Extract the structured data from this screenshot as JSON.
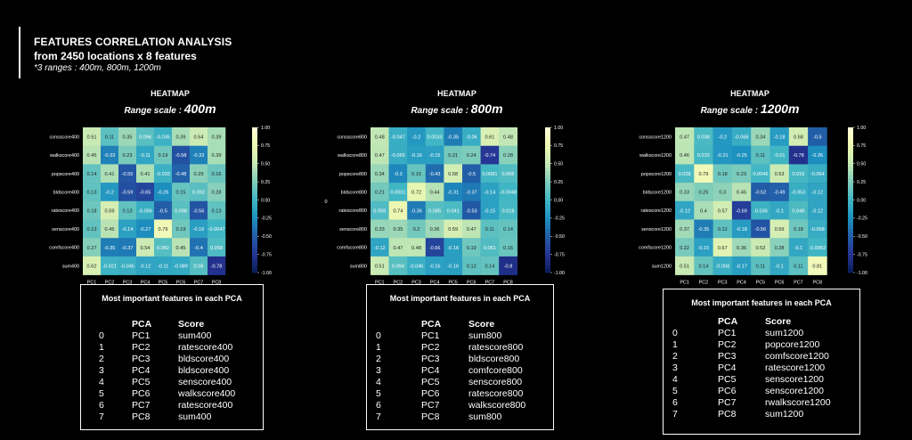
{
  "header": {
    "title": "FEATURES CORRELATION ANALYSIS",
    "subtitle": "from 2450 locations x 8 features",
    "note": "*3 ranges : 400m, 800m, 1200m"
  },
  "chart_data": [
    {
      "type": "heatmap",
      "title": "HEATMAP",
      "subtitle_prefix": "Range scale : ",
      "subtitle_value": "400m",
      "ylabel": "",
      "x": [
        "PC1",
        "PC2",
        "PC3",
        "PC4",
        "PC5",
        "PC6",
        "PC7",
        "PC8"
      ],
      "y": [
        "consscore400",
        "walkscore400",
        "popscore400",
        "bldscore400",
        "ratescore400",
        "senscore400",
        "comfscore400",
        "sum400"
      ],
      "values": [
        [
          0.51,
          0.11,
          0.35,
          0.096,
          -0.035,
          0.39,
          0.54,
          0.39
        ],
        [
          0.45,
          -0.33,
          0.23,
          -0.11,
          0.19,
          -0.58,
          -0.33,
          0.39
        ],
        [
          0.14,
          0.41,
          -0.55,
          0.41,
          -0.033,
          -0.48,
          0.29,
          0.16
        ],
        [
          0.13,
          -0.2,
          -0.59,
          -0.65,
          -0.26,
          0.15,
          0.092,
          0.28
        ],
        [
          0.18,
          0.59,
          0.13,
          -0.056,
          -0.5,
          0.098,
          -0.56,
          0.13
        ],
        [
          0.13,
          0.45,
          -0.14,
          -0.27,
          0.79,
          0.19,
          -0.16,
          -0.0047
        ],
        [
          0.27,
          -0.35,
          -0.37,
          0.54,
          0.082,
          0.45,
          -0.4,
          0.058
        ],
        [
          0.62,
          -0.021,
          -0.045,
          -0.12,
          -0.11,
          -0.089,
          0.08,
          -0.78
        ]
      ],
      "colorbar_ticks": [
        "1.00",
        "0.75",
        "0.50",
        "0.25",
        "0.00",
        "-0.25",
        "-0.50",
        "-0.75",
        "-1.00"
      ],
      "vmin": -1,
      "vmax": 1
    },
    {
      "type": "heatmap",
      "title": "HEATMAP",
      "subtitle_prefix": "Range scale : ",
      "subtitle_value": "800m",
      "ylabel": "0",
      "x": [
        "PC1",
        "PC2",
        "PC3",
        "PC4",
        "PC5",
        "PC6",
        "PC7",
        "PC8"
      ],
      "y": [
        "consscore800",
        "walkscore800",
        "popscore800",
        "bldscore800",
        "ratescore800",
        "senscore800",
        "comfscore800",
        "sum800"
      ],
      "values": [
        [
          0.48,
          -0.047,
          -0.2,
          0.0033,
          -0.35,
          -0.06,
          0.61,
          0.48
        ],
        [
          0.47,
          -0.065,
          -0.16,
          -0.15,
          0.21,
          0.24,
          -0.74,
          0.28
        ],
        [
          0.34,
          -0.3,
          0.15,
          -0.43,
          0.58,
          -0.5,
          0.0081,
          0.065
        ],
        [
          0.21,
          0.0001,
          0.72,
          0.44,
          -0.31,
          -0.37,
          -0.14,
          -0.0048
        ],
        [
          0.059,
          0.74,
          -0.36,
          0.085,
          0.041,
          -0.53,
          -0.15,
          0.018
        ],
        [
          0.33,
          0.35,
          0.2,
          0.36,
          0.59,
          0.47,
          0.11,
          0.14
        ],
        [
          -0.12,
          0.47,
          0.48,
          -0.66,
          -0.16,
          0.19,
          0.061,
          0.16
        ],
        [
          0.51,
          0.094,
          -0.046,
          -0.15,
          -0.16,
          0.12,
          0.14,
          -0.8
        ]
      ],
      "colorbar_ticks": [
        "1.00",
        "0.75",
        "0.50",
        "0.25",
        "0.00",
        "-0.25",
        "-0.50",
        "-0.75",
        "-1.00"
      ],
      "vmin": -1,
      "vmax": 1
    },
    {
      "type": "heatmap",
      "title": "HEATMAP",
      "subtitle_prefix": "Range scale : ",
      "subtitle_value": "1200m",
      "ylabel": "",
      "x": [
        "PC1",
        "PC2",
        "PC3",
        "PC4",
        "PC5",
        "PC6",
        "PC7",
        "PC8"
      ],
      "y": [
        "consscore1200",
        "walkscore1200",
        "popscore1200",
        "bldscore1200",
        "ratescore1200",
        "senscore1200",
        "comfscore1200",
        "sum1200"
      ],
      "values": [
        [
          0.47,
          0.038,
          -0.2,
          -0.068,
          0.34,
          -0.18,
          0.58,
          -0.5
        ],
        [
          0.46,
          0.015,
          -0.21,
          -0.25,
          0.11,
          -0.01,
          -0.78,
          -0.26
        ],
        [
          0.028,
          0.79,
          0.18,
          0.23,
          0.0046,
          0.53,
          0.016,
          -0.054
        ],
        [
          0.33,
          0.25,
          0.3,
          0.45,
          -0.52,
          -0.49,
          -0.053,
          -0.12
        ],
        [
          -0.12,
          0.4,
          0.57,
          -0.69,
          -0.036,
          -0.1,
          0.048,
          -0.12
        ],
        [
          0.37,
          -0.35,
          0.12,
          -0.18,
          -0.56,
          0.59,
          0.18,
          -0.068
        ],
        [
          0.22,
          -0.15,
          0.67,
          0.36,
          0.52,
          0.28,
          -0.1,
          -0.0052
        ],
        [
          0.51,
          0.14,
          -0.058,
          -0.17,
          0.11,
          -0.1,
          0.11,
          0.81
        ]
      ],
      "colorbar_ticks": [
        "1.00",
        "0.75",
        "0.50",
        "0.25",
        "0.00",
        "-0.25",
        "-0.50",
        "-0.75",
        "-1.00"
      ],
      "vmin": -1,
      "vmax": 1
    }
  ],
  "tables": [
    {
      "title": "Most important features in each PCA",
      "columns": [
        "PCA",
        "Score"
      ],
      "rows": [
        [
          "0",
          "PC1",
          "sum400"
        ],
        [
          "1",
          "PC2",
          "ratescore400"
        ],
        [
          "2",
          "PC3",
          "bldscore400"
        ],
        [
          "3",
          "PC4",
          "bldscore400"
        ],
        [
          "4",
          "PC5",
          "senscore400"
        ],
        [
          "5",
          "PC6",
          "walkscore400"
        ],
        [
          "6",
          "PC7",
          "ratescore400"
        ],
        [
          "7",
          "PC8",
          "sum400"
        ]
      ]
    },
    {
      "title": "Most important features in each PCA",
      "columns": [
        "PCA",
        "Score"
      ],
      "rows": [
        [
          "0",
          "PC1",
          "sum800"
        ],
        [
          "1",
          "PC2",
          "ratescore800"
        ],
        [
          "2",
          "PC3",
          "bldscore800"
        ],
        [
          "3",
          "PC4",
          "comfcore800"
        ],
        [
          "4",
          "PC5",
          "senscore800"
        ],
        [
          "5",
          "PC6",
          "ratescore800"
        ],
        [
          "6",
          "PC7",
          "walkscore800"
        ],
        [
          "7",
          "PC8",
          "sum800"
        ]
      ]
    },
    {
      "title": "Most important features in each PCA",
      "columns": [
        "PCA",
        "Score"
      ],
      "rows": [
        [
          "0",
          "PC1",
          "sum1200"
        ],
        [
          "1",
          "PC2",
          "popcore1200"
        ],
        [
          "2",
          "PC3",
          "comfscore1200"
        ],
        [
          "3",
          "PC4",
          "ratescore1200"
        ],
        [
          "4",
          "PC5",
          "senscore1200"
        ],
        [
          "5",
          "PC6",
          "senscore1200"
        ],
        [
          "6",
          "PC7",
          "rwalkscore1200"
        ],
        [
          "7",
          "PC8",
          "sum1200"
        ]
      ]
    }
  ],
  "colors": {
    "background": "#000000",
    "text": "#ffffff",
    "cmap_low": "#08306b",
    "cmap_mid": "#41b6c4",
    "cmap_high": "#f7fcf0"
  }
}
